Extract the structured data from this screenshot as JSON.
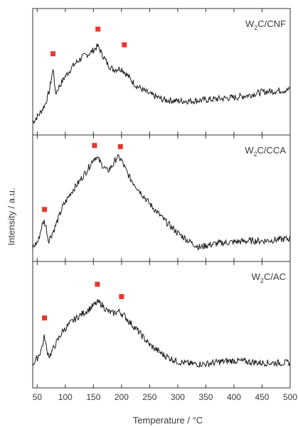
{
  "figure": {
    "ylabel": "Intensity / a.u.",
    "xlabel_prefix": "Temperature / ",
    "xlabel_unit": "°C"
  },
  "chart_data": [
    {
      "type": "line",
      "panel_label_main": "W",
      "panel_label_sub": "2",
      "panel_label_rest": "C/CNF",
      "x_ticks": [
        50,
        100,
        150,
        200,
        250,
        300,
        350,
        400,
        450,
        500
      ],
      "xlim": [
        42,
        500
      ],
      "ylim": [
        0,
        1
      ],
      "grid": false,
      "series": [
        {
          "x": [
            42,
            55,
            65,
            72,
            76,
            79,
            82,
            88,
            100,
            115,
            130,
            145,
            158,
            165,
            175,
            185,
            200,
            210,
            225,
            250,
            275,
            300,
            325,
            350,
            375,
            400,
            425,
            450,
            475,
            500
          ],
          "y": [
            0.05,
            0.13,
            0.22,
            0.34,
            0.47,
            0.53,
            0.3,
            0.36,
            0.46,
            0.56,
            0.63,
            0.67,
            0.73,
            0.66,
            0.57,
            0.52,
            0.53,
            0.47,
            0.38,
            0.3,
            0.25,
            0.24,
            0.24,
            0.25,
            0.26,
            0.27,
            0.29,
            0.32,
            0.33,
            0.34
          ]
        }
      ],
      "markers": [
        {
          "x": 78,
          "y": 0.66
        },
        {
          "x": 158,
          "y": 0.88
        },
        {
          "x": 205,
          "y": 0.74
        }
      ],
      "marker_color": "#e8362e"
    },
    {
      "type": "line",
      "panel_label_main": "W",
      "panel_label_sub": "2",
      "panel_label_rest": "C/CCA",
      "x_ticks": [
        50,
        100,
        150,
        200,
        250,
        300,
        350,
        400,
        450,
        500
      ],
      "xlim": [
        42,
        500
      ],
      "ylim": [
        0,
        1
      ],
      "grid": false,
      "series": [
        {
          "x": [
            42,
            52,
            58,
            62,
            66,
            70,
            80,
            95,
            110,
            125,
            140,
            150,
            155,
            165,
            175,
            185,
            192,
            200,
            205,
            215,
            230,
            250,
            275,
            300,
            325,
            340,
            350,
            375,
            400,
            425,
            450,
            475,
            500
          ],
          "y": [
            0.06,
            0.12,
            0.25,
            0.3,
            0.24,
            0.12,
            0.22,
            0.42,
            0.55,
            0.65,
            0.76,
            0.85,
            0.87,
            0.8,
            0.74,
            0.8,
            0.87,
            0.84,
            0.78,
            0.68,
            0.58,
            0.45,
            0.31,
            0.19,
            0.1,
            0.06,
            0.08,
            0.1,
            0.11,
            0.12,
            0.12,
            0.13,
            0.14
          ]
        }
      ],
      "markers": [
        {
          "x": 63,
          "y": 0.4
        },
        {
          "x": 152,
          "y": 0.97
        },
        {
          "x": 198,
          "y": 0.96
        }
      ],
      "marker_color": "#e8362e"
    },
    {
      "type": "line",
      "panel_label_main": "W",
      "panel_label_sub": "2",
      "panel_label_rest": "C/AC",
      "x_ticks": [
        50,
        100,
        150,
        200,
        250,
        300,
        350,
        400,
        450,
        500
      ],
      "xlim": [
        42,
        500
      ],
      "ylim": [
        0,
        1
      ],
      "grid": false,
      "series": [
        {
          "x": [
            42,
            50,
            56,
            60,
            63,
            67,
            72,
            80,
            95,
            110,
            125,
            140,
            150,
            158,
            165,
            175,
            185,
            195,
            205,
            215,
            230,
            250,
            275,
            300,
            325,
            350,
            375,
            400,
            425,
            450,
            475,
            500
          ],
          "y": [
            0.15,
            0.2,
            0.26,
            0.33,
            0.4,
            0.27,
            0.22,
            0.3,
            0.44,
            0.52,
            0.58,
            0.63,
            0.67,
            0.7,
            0.68,
            0.62,
            0.6,
            0.62,
            0.58,
            0.52,
            0.44,
            0.32,
            0.23,
            0.17,
            0.15,
            0.15,
            0.17,
            0.18,
            0.17,
            0.16,
            0.16,
            0.16
          ]
        }
      ],
      "markers": [
        {
          "x": 63,
          "y": 0.56
        },
        {
          "x": 157,
          "y": 0.86
        },
        {
          "x": 200,
          "y": 0.75
        }
      ],
      "marker_color": "#e8362e"
    }
  ]
}
